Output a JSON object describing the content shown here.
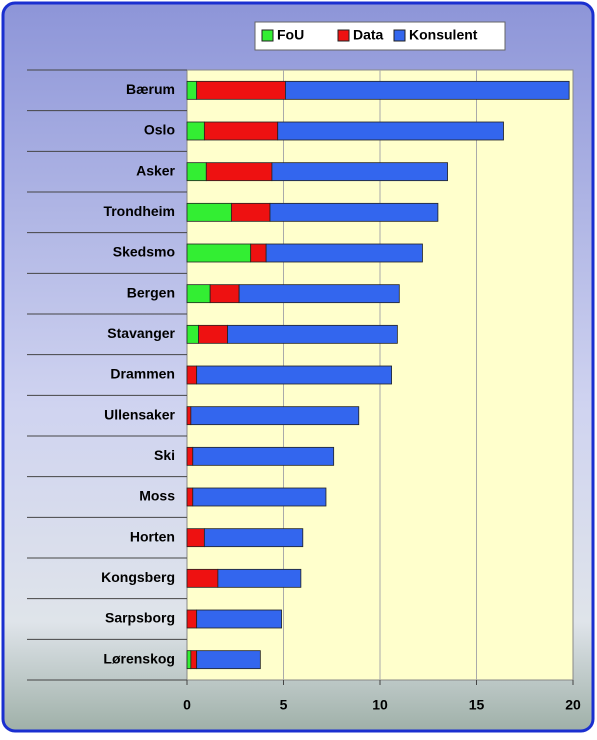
{
  "chart_data": {
    "type": "stacked_bar_horizontal",
    "categories": [
      "Bærum",
      "Oslo",
      "Asker",
      "Trondheim",
      "Skedsmo",
      "Bergen",
      "Stavanger",
      "Drammen",
      "Ullensaker",
      "Ski",
      "Moss",
      "Horten",
      "Kongsberg",
      "Sarpsborg",
      "Lørenskog"
    ],
    "series": [
      {
        "name": "FoU",
        "color": "#33ee33",
        "values": [
          0.5,
          0.9,
          1.0,
          2.3,
          3.3,
          1.2,
          0.6,
          0,
          0,
          0,
          0,
          0,
          0,
          0,
          0.2
        ]
      },
      {
        "name": "Data",
        "color": "#ee1111",
        "values": [
          4.6,
          3.8,
          3.4,
          2.0,
          0.8,
          1.5,
          1.5,
          0.5,
          0.2,
          0.3,
          0.3,
          0.9,
          1.6,
          0.5,
          0.3
        ]
      },
      {
        "name": "Konsulent",
        "color": "#3366ee",
        "values": [
          14.7,
          11.7,
          9.1,
          8.7,
          8.1,
          8.3,
          8.8,
          10.1,
          8.7,
          7.3,
          6.9,
          5.1,
          4.3,
          4.4,
          3.3
        ]
      }
    ],
    "xlim": [
      0,
      20
    ],
    "xticks": [
      0,
      5,
      10,
      15,
      20
    ],
    "grid": true,
    "legend": "top"
  }
}
